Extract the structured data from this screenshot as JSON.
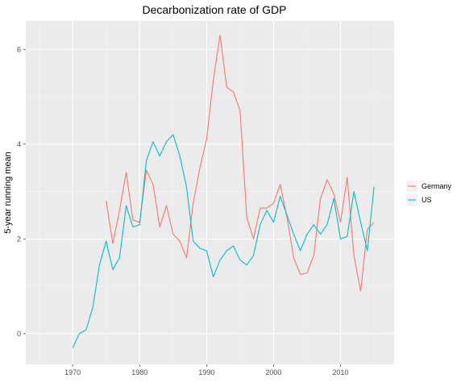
{
  "chart_data": {
    "type": "line",
    "title": "Decarbonization rate of GDP",
    "xlabel": "",
    "ylabel": "5-year running mean",
    "xlim": [
      1963,
      2018
    ],
    "ylim": [
      -0.65,
      6.6
    ],
    "x_ticks": [
      1970,
      1980,
      1990,
      2000,
      2010
    ],
    "y_ticks": [
      0,
      2,
      4,
      6
    ],
    "grid": true,
    "legend_position": "right",
    "series": [
      {
        "name": "Germany",
        "color": "#F8766D",
        "x": [
          1975,
          1976,
          1977,
          1978,
          1979,
          1980,
          1981,
          1982,
          1983,
          1984,
          1985,
          1986,
          1987,
          1988,
          1989,
          1990,
          1991,
          1992,
          1993,
          1994,
          1995,
          1996,
          1997,
          1998,
          1999,
          2000,
          2001,
          2002,
          2003,
          2004,
          2005,
          2006,
          2007,
          2008,
          2009,
          2010,
          2011,
          2012,
          2013,
          2014,
          2015
        ],
        "values": [
          2.8,
          1.9,
          2.6,
          3.4,
          2.4,
          2.35,
          3.45,
          3.15,
          2.25,
          2.7,
          2.1,
          1.95,
          1.6,
          2.75,
          3.5,
          4.1,
          5.35,
          6.3,
          5.2,
          5.1,
          4.7,
          2.45,
          2.0,
          2.65,
          2.65,
          2.75,
          3.15,
          2.45,
          1.6,
          1.25,
          1.28,
          1.65,
          2.85,
          3.25,
          2.95,
          2.35,
          3.3,
          1.65,
          0.9,
          2.2,
          2.35
        ]
      },
      {
        "name": "US",
        "color": "#00BFC4",
        "x": [
          1970,
          1971,
          1972,
          1973,
          1974,
          1975,
          1976,
          1977,
          1978,
          1979,
          1980,
          1981,
          1982,
          1983,
          1984,
          1985,
          1986,
          1987,
          1988,
          1989,
          1990,
          1991,
          1992,
          1993,
          1994,
          1995,
          1996,
          1997,
          1998,
          1999,
          2000,
          2001,
          2002,
          2003,
          2004,
          2005,
          2006,
          2007,
          2008,
          2009,
          2010,
          2011,
          2012,
          2013,
          2014,
          2015
        ],
        "values": [
          -0.3,
          0.0,
          0.08,
          0.55,
          1.45,
          1.95,
          1.35,
          1.6,
          2.7,
          2.25,
          2.3,
          3.65,
          4.05,
          3.75,
          4.05,
          4.2,
          3.75,
          3.1,
          1.95,
          1.8,
          1.75,
          1.2,
          1.55,
          1.75,
          1.85,
          1.55,
          1.45,
          1.65,
          2.3,
          2.6,
          2.35,
          2.9,
          2.5,
          2.1,
          1.75,
          2.1,
          2.3,
          2.1,
          2.3,
          2.85,
          2.0,
          2.05,
          3.0,
          2.35,
          1.75,
          3.1
        ]
      }
    ]
  }
}
